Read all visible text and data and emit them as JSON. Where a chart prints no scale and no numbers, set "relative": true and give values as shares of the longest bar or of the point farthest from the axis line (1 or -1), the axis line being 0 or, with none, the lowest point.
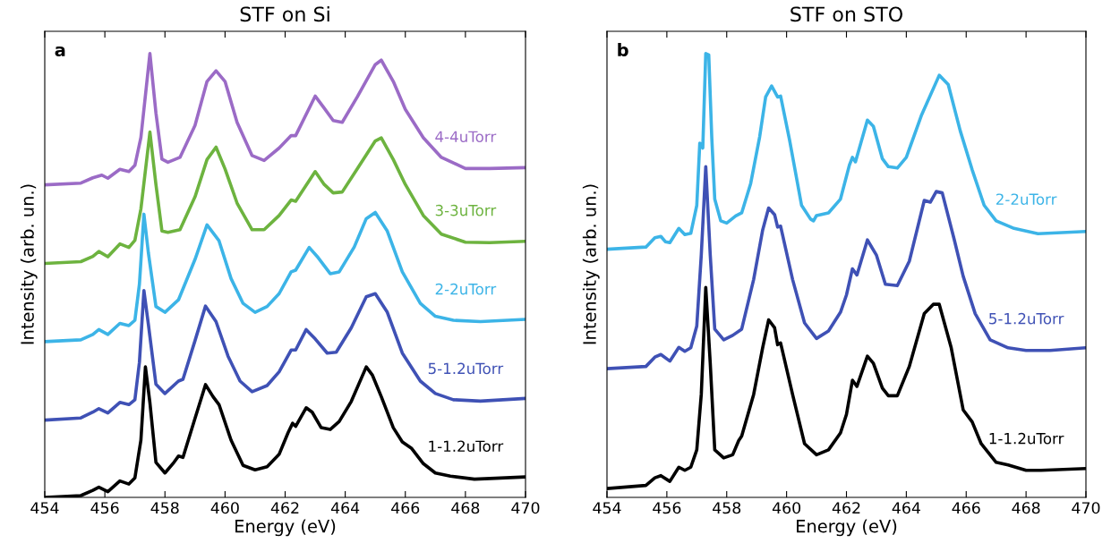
{
  "chart_data": [
    {
      "type": "line",
      "title": "STF on Si",
      "xlabel": "Energy (eV)",
      "ylabel": "Intensity (arb. un.)",
      "annotations": [
        "a"
      ],
      "relative": true,
      "legend": false,
      "xlim": [
        454,
        470
      ],
      "xticks": [
        454,
        456,
        458,
        460,
        462,
        464,
        466,
        468,
        470
      ],
      "series": [
        {
          "name": "4-4uTorr",
          "color": "#9b6bc6",
          "x": [
            454,
            455.2,
            455.6,
            455.9,
            456.1,
            456.5,
            456.8,
            457.0,
            457.2,
            457.5,
            457.7,
            457.9,
            458.1,
            458.5,
            459.0,
            459.4,
            459.7,
            460.0,
            460.4,
            460.9,
            461.3,
            461.8,
            462.2,
            462.35,
            463.0,
            463.3,
            463.6,
            463.9,
            464.4,
            465.0,
            465.2,
            465.6,
            466.0,
            466.6,
            467.2,
            468.0,
            468.8,
            470
          ],
          "values": [
            0.704,
            0.708,
            0.72,
            0.726,
            0.719,
            0.739,
            0.734,
            0.748,
            0.811,
            1,
            0.866,
            0.762,
            0.755,
            0.766,
            0.838,
            0.937,
            0.961,
            0.937,
            0.845,
            0.77,
            0.759,
            0.787,
            0.815,
            0.815,
            0.904,
            0.877,
            0.849,
            0.845,
            0.902,
            0.975,
            0.985,
            0.937,
            0.874,
            0.81,
            0.766,
            0.741,
            0.741,
            0.743
          ]
        },
        {
          "name": "3-3uTorr",
          "color": "#6db33f",
          "x": [
            454,
            455.2,
            455.6,
            455.8,
            456.1,
            456.5,
            456.8,
            457.0,
            457.2,
            457.5,
            457.7,
            457.9,
            458.1,
            458.5,
            459.0,
            459.4,
            459.7,
            460.0,
            460.4,
            460.9,
            461.3,
            461.8,
            462.2,
            462.35,
            463.0,
            463.3,
            463.6,
            463.9,
            464.4,
            465.0,
            465.2,
            465.6,
            466.0,
            466.6,
            467.2,
            468.0,
            468.8,
            470
          ],
          "values": [
            0.527,
            0.531,
            0.543,
            0.554,
            0.542,
            0.571,
            0.563,
            0.579,
            0.65,
            0.823,
            0.705,
            0.6,
            0.597,
            0.603,
            0.677,
            0.761,
            0.789,
            0.74,
            0.663,
            0.603,
            0.603,
            0.635,
            0.67,
            0.667,
            0.734,
            0.705,
            0.686,
            0.688,
            0.74,
            0.803,
            0.81,
            0.761,
            0.705,
            0.635,
            0.593,
            0.575,
            0.574,
            0.577
          ]
        },
        {
          "name": "2-2uTorr",
          "color": "#3cb4e7",
          "x": [
            454,
            455.2,
            455.6,
            455.8,
            456.1,
            456.5,
            456.8,
            457.0,
            457.15,
            457.3,
            457.45,
            457.7,
            458.0,
            458.45,
            459.0,
            459.4,
            459.8,
            460.2,
            460.6,
            461.0,
            461.4,
            461.8,
            462.2,
            462.35,
            462.8,
            463.1,
            463.5,
            463.8,
            464.3,
            464.7,
            465.0,
            465.4,
            465.9,
            466.5,
            467.0,
            467.6,
            468.5,
            470
          ],
          "values": [
            0.351,
            0.355,
            0.367,
            0.378,
            0.367,
            0.392,
            0.387,
            0.399,
            0.48,
            0.638,
            0.55,
            0.43,
            0.417,
            0.445,
            0.536,
            0.614,
            0.578,
            0.493,
            0.437,
            0.417,
            0.43,
            0.459,
            0.508,
            0.512,
            0.563,
            0.54,
            0.504,
            0.508,
            0.564,
            0.628,
            0.642,
            0.6,
            0.508,
            0.437,
            0.408,
            0.399,
            0.396,
            0.401
          ]
        },
        {
          "name": "5-1.2uTorr",
          "color": "#3f51b5",
          "x": [
            454,
            455.2,
            455.6,
            455.8,
            456.1,
            456.5,
            456.8,
            457.0,
            457.15,
            457.3,
            457.45,
            457.7,
            458.0,
            458.45,
            458.6,
            459.0,
            459.35,
            459.7,
            460.1,
            460.5,
            460.9,
            461.4,
            461.8,
            462.2,
            462.35,
            462.7,
            463.0,
            463.4,
            463.7,
            464.2,
            464.7,
            465.0,
            465.4,
            465.9,
            466.5,
            467.0,
            467.6,
            468.5,
            470
          ],
          "values": [
            0.174,
            0.179,
            0.192,
            0.2,
            0.19,
            0.214,
            0.209,
            0.22,
            0.304,
            0.466,
            0.389,
            0.255,
            0.234,
            0.262,
            0.266,
            0.353,
            0.431,
            0.396,
            0.318,
            0.262,
            0.238,
            0.252,
            0.283,
            0.332,
            0.332,
            0.378,
            0.357,
            0.325,
            0.327,
            0.382,
            0.452,
            0.459,
            0.417,
            0.325,
            0.262,
            0.234,
            0.22,
            0.217,
            0.223
          ]
        },
        {
          "name": "1-1.2uTorr",
          "color": "#000000",
          "x": [
            454,
            455.2,
            455.6,
            455.8,
            456.1,
            456.5,
            456.8,
            457.0,
            457.2,
            457.35,
            457.5,
            457.7,
            458.0,
            458.3,
            458.45,
            458.6,
            459.0,
            459.35,
            459.6,
            459.8,
            460.2,
            460.6,
            461.0,
            461.4,
            461.8,
            462.1,
            462.25,
            462.35,
            462.7,
            462.9,
            463.2,
            463.5,
            463.8,
            464.2,
            464.7,
            464.9,
            465.2,
            465.6,
            465.9,
            466.2,
            466.6,
            467.0,
            467.5,
            468.3,
            469.0,
            470
          ],
          "values": [
            0,
            0.004,
            0.016,
            0.023,
            0.013,
            0.037,
            0.03,
            0.044,
            0.129,
            0.294,
            0.213,
            0.079,
            0.055,
            0.079,
            0.093,
            0.09,
            0.178,
            0.254,
            0.227,
            0.209,
            0.129,
            0.072,
            0.062,
            0.069,
            0.097,
            0.146,
            0.167,
            0.16,
            0.202,
            0.192,
            0.157,
            0.153,
            0.171,
            0.216,
            0.294,
            0.276,
            0.227,
            0.157,
            0.125,
            0.111,
            0.076,
            0.055,
            0.048,
            0.041,
            0.043,
            0.046
          ]
        }
      ]
    },
    {
      "type": "line",
      "title": "STF on STO",
      "xlabel": "Energy (eV)",
      "ylabel": "Intensity (arb. un.)",
      "annotations": [
        "b"
      ],
      "relative": true,
      "legend": false,
      "xlim": [
        454,
        470
      ],
      "xticks": [
        454,
        456,
        458,
        460,
        462,
        464,
        466,
        468,
        470
      ],
      "series": [
        {
          "name": "2-2uTorr",
          "color": "#3cb4e7",
          "x": [
            454,
            455.3,
            455.6,
            455.8,
            455.95,
            456.1,
            456.4,
            456.6,
            456.8,
            457.0,
            457.1,
            457.2,
            457.3,
            457.4,
            457.5,
            457.6,
            457.8,
            458.0,
            458.3,
            458.5,
            458.8,
            459.1,
            459.3,
            459.5,
            459.7,
            459.8,
            460.1,
            460.5,
            460.8,
            460.9,
            461.0,
            461.4,
            461.8,
            462.1,
            462.2,
            462.3,
            462.7,
            462.9,
            463.2,
            463.4,
            463.7,
            464.0,
            464.5,
            465.1,
            465.4,
            465.8,
            466.2,
            466.6,
            467.0,
            467.6,
            468.4,
            470
          ],
          "values": [
            0.559,
            0.564,
            0.585,
            0.588,
            0.576,
            0.574,
            0.606,
            0.592,
            0.595,
            0.658,
            0.798,
            0.787,
            1,
            0.997,
            0.812,
            0.672,
            0.623,
            0.618,
            0.634,
            0.641,
            0.707,
            0.812,
            0.902,
            0.927,
            0.902,
            0.904,
            0.805,
            0.658,
            0.627,
            0.623,
            0.635,
            0.641,
            0.672,
            0.749,
            0.766,
            0.756,
            0.85,
            0.836,
            0.763,
            0.745,
            0.742,
            0.766,
            0.86,
            0.951,
            0.93,
            0.826,
            0.738,
            0.658,
            0.623,
            0.606,
            0.594,
            0.599
          ]
        },
        {
          "name": "5-1.2uTorr",
          "color": "#3f51b5",
          "x": [
            454,
            455.3,
            455.6,
            455.8,
            456.1,
            456.4,
            456.6,
            456.8,
            457.0,
            457.15,
            457.3,
            457.45,
            457.6,
            457.9,
            458.2,
            458.5,
            458.9,
            459.2,
            459.4,
            459.6,
            459.7,
            459.8,
            460.2,
            460.6,
            461.0,
            461.4,
            461.8,
            462.0,
            462.2,
            462.35,
            462.7,
            463.0,
            463.3,
            463.7,
            464.1,
            464.6,
            464.8,
            465.0,
            465.2,
            465.6,
            465.9,
            466.3,
            466.8,
            467.4,
            468.0,
            468.8,
            470
          ],
          "values": [
            0.29,
            0.295,
            0.316,
            0.322,
            0.307,
            0.338,
            0.329,
            0.337,
            0.386,
            0.546,
            0.745,
            0.546,
            0.379,
            0.355,
            0.365,
            0.379,
            0.491,
            0.602,
            0.652,
            0.637,
            0.609,
            0.611,
            0.491,
            0.393,
            0.358,
            0.375,
            0.417,
            0.456,
            0.515,
            0.501,
            0.58,
            0.546,
            0.48,
            0.477,
            0.532,
            0.669,
            0.665,
            0.689,
            0.686,
            0.581,
            0.498,
            0.414,
            0.355,
            0.337,
            0.331,
            0.331,
            0.337
          ]
        },
        {
          "name": "1-1.2uTorr",
          "color": "#000000",
          "x": [
            454,
            455.3,
            455.6,
            455.8,
            456.1,
            456.4,
            456.6,
            456.8,
            457.0,
            457.15,
            457.3,
            457.45,
            457.6,
            457.9,
            458.2,
            458.4,
            458.5,
            458.9,
            459.2,
            459.4,
            459.6,
            459.7,
            459.8,
            460.2,
            460.6,
            461.0,
            461.4,
            461.8,
            462.0,
            462.2,
            462.35,
            462.7,
            462.9,
            463.2,
            463.4,
            463.7,
            464.1,
            464.6,
            464.9,
            465.1,
            465.5,
            465.9,
            466.2,
            466.5,
            467.0,
            467.4,
            468.0,
            468.5,
            470
          ],
          "values": [
            0.02,
            0.027,
            0.044,
            0.049,
            0.036,
            0.068,
            0.061,
            0.068,
            0.107,
            0.232,
            0.473,
            0.302,
            0.107,
            0.089,
            0.096,
            0.128,
            0.138,
            0.232,
            0.337,
            0.4,
            0.382,
            0.344,
            0.348,
            0.232,
            0.121,
            0.096,
            0.107,
            0.145,
            0.187,
            0.264,
            0.25,
            0.318,
            0.302,
            0.246,
            0.229,
            0.229,
            0.295,
            0.414,
            0.435,
            0.435,
            0.337,
            0.197,
            0.17,
            0.121,
            0.079,
            0.073,
            0.061,
            0.061,
            0.065
          ]
        }
      ]
    }
  ]
}
